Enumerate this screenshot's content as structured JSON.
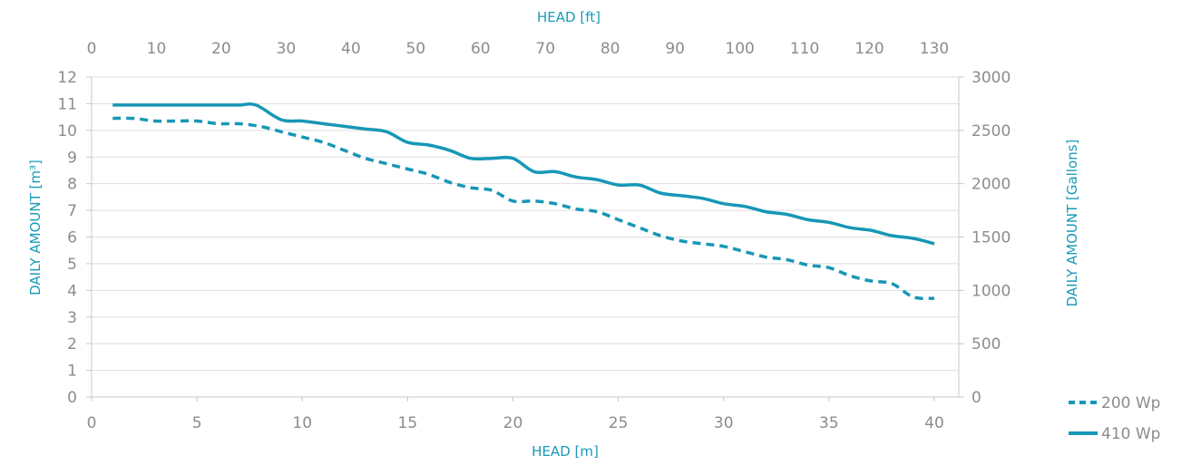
{
  "colors": {
    "series": "#1797b6",
    "axis_title": "#1a9ab8",
    "tick": "#8c8c8c",
    "grid": "#dddddd",
    "axis": "#c8c8c8"
  },
  "chart_data": {
    "type": "line",
    "grid": true,
    "legend_position": "bottom-right",
    "xlabel_bottom": "HEAD [m]",
    "xlabel_top": "HEAD [ft]",
    "ylabel_left": "DAILY AMOUNT [m³]",
    "ylabel_right": "DAILY AMOUNT [Gallons]",
    "xlim_bottom": [
      0,
      40
    ],
    "xlim_top": [
      0,
      130
    ],
    "ylim_left": [
      0,
      12
    ],
    "ylim_right": [
      0,
      3000
    ],
    "x_ticks_bottom": [
      "0",
      "5",
      "10",
      "15",
      "20",
      "25",
      "30",
      "35",
      "40"
    ],
    "x_ticks_top": [
      "0",
      "10",
      "20",
      "30",
      "40",
      "50",
      "60",
      "70",
      "80",
      "90",
      "100",
      "110",
      "120",
      "130"
    ],
    "y_ticks_left": [
      "0",
      "1",
      "2",
      "3",
      "4",
      "5",
      "6",
      "7",
      "8",
      "9",
      "10",
      "11",
      "12"
    ],
    "y_ticks_right": [
      "0",
      "500",
      "1000",
      "1500",
      "2000",
      "2500",
      "3000"
    ],
    "series": [
      {
        "name": "200 Wp",
        "style": "dashed",
        "x": [
          1,
          2,
          3,
          4,
          5,
          6,
          7,
          8,
          9,
          10,
          11,
          12,
          13,
          14,
          15,
          16,
          17,
          18,
          19,
          20,
          21,
          22,
          23,
          24,
          25,
          26,
          27,
          28,
          29,
          30,
          31,
          32,
          33,
          34,
          35,
          36,
          37,
          38,
          39,
          40
        ],
        "y": [
          10.45,
          10.45,
          10.35,
          10.35,
          10.35,
          10.25,
          10.25,
          10.15,
          9.95,
          9.75,
          9.55,
          9.25,
          8.95,
          8.75,
          8.55,
          8.35,
          8.05,
          7.85,
          7.75,
          7.35,
          7.35,
          7.25,
          7.05,
          6.95,
          6.65,
          6.35,
          6.05,
          5.85,
          5.75,
          5.65,
          5.45,
          5.25,
          5.15,
          4.95,
          4.85,
          4.55,
          4.35,
          4.25,
          3.75,
          3.7
        ]
      },
      {
        "name": "410 Wp",
        "style": "solid",
        "x": [
          1,
          2,
          3,
          4,
          5,
          6,
          7,
          7.8,
          9,
          10,
          11,
          12,
          13,
          14,
          15,
          16,
          17,
          18,
          19,
          20,
          21,
          22,
          23,
          24,
          25,
          26,
          27,
          28,
          29,
          30,
          31,
          32,
          33,
          34,
          35,
          36,
          37,
          38,
          39,
          40
        ],
        "y": [
          10.95,
          10.95,
          10.95,
          10.95,
          10.95,
          10.95,
          10.95,
          10.95,
          10.4,
          10.35,
          10.25,
          10.15,
          10.05,
          9.95,
          9.55,
          9.45,
          9.25,
          8.95,
          8.95,
          8.95,
          8.45,
          8.45,
          8.25,
          8.15,
          7.95,
          7.95,
          7.65,
          7.55,
          7.45,
          7.25,
          7.15,
          6.95,
          6.85,
          6.65,
          6.55,
          6.35,
          6.25,
          6.05,
          5.95,
          5.75
        ]
      }
    ]
  }
}
